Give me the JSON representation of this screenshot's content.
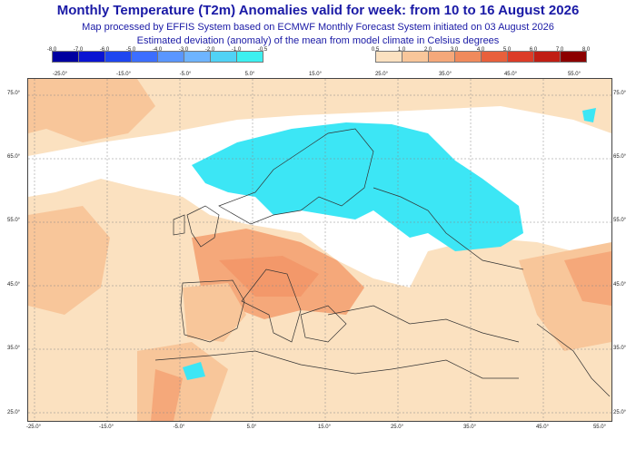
{
  "header": {
    "title": "Monthly Temperature (T2m) Anomalies valid for week: from 10 to 16 August 2026",
    "subtitle1": "Map processed by EFFIS System based on ECMWF Monthly Forecast System initiated on 03 August 2026",
    "subtitle2": "Estimated deviation (anomaly) of the mean from model climate in Celsius degrees"
  },
  "legend_negative": {
    "ticks": [
      "-8.0",
      "-7.0",
      "-6.0",
      "-5.0",
      "-4.0",
      "-3.0",
      "-2.0",
      "-1.0",
      "-0.5"
    ],
    "colors": [
      "#0000a0",
      "#0a14d2",
      "#1e46f0",
      "#3c6eff",
      "#5a96ff",
      "#6eb4ff",
      "#50d2f5",
      "#3cf0f0"
    ]
  },
  "legend_positive": {
    "ticks": [
      "0.5",
      "1.0",
      "2.0",
      "3.0",
      "4.0",
      "5.0",
      "6.0",
      "7.0",
      "8.0"
    ],
    "colors": [
      "#fbe1c0",
      "#f8c69a",
      "#f5a87a",
      "#f08a5c",
      "#e8603c",
      "#dc3c28",
      "#c01e14",
      "#8c0000"
    ]
  },
  "axis": {
    "x_bottom": [
      "-25.0°",
      "-15.0°",
      "-5.0°",
      "5.0°",
      "15.0°",
      "25.0°",
      "35.0°",
      "45.0°",
      "55.0°"
    ],
    "x_top": [
      "-25.0°",
      "-15.0°",
      "-5.0°",
      "5.0°",
      "15.0°",
      "25.0°",
      "35.0°",
      "45.0°",
      "55.0°"
    ],
    "y_left": [
      "75.0°",
      "65.0°",
      "55.0°",
      "45.0°",
      "35.0°",
      "25.0°"
    ],
    "y_right": [
      "75.0°",
      "65.0°",
      "55.0°",
      "45.0°",
      "35.0°",
      "25.0°"
    ]
  },
  "map_colors": {
    "warm_light": "#fbe1c0",
    "warm_mid": "#f8c69a",
    "warm_strong": "#f5a87a",
    "cool": "#3ce6f5",
    "neutral": "#ffffff"
  }
}
